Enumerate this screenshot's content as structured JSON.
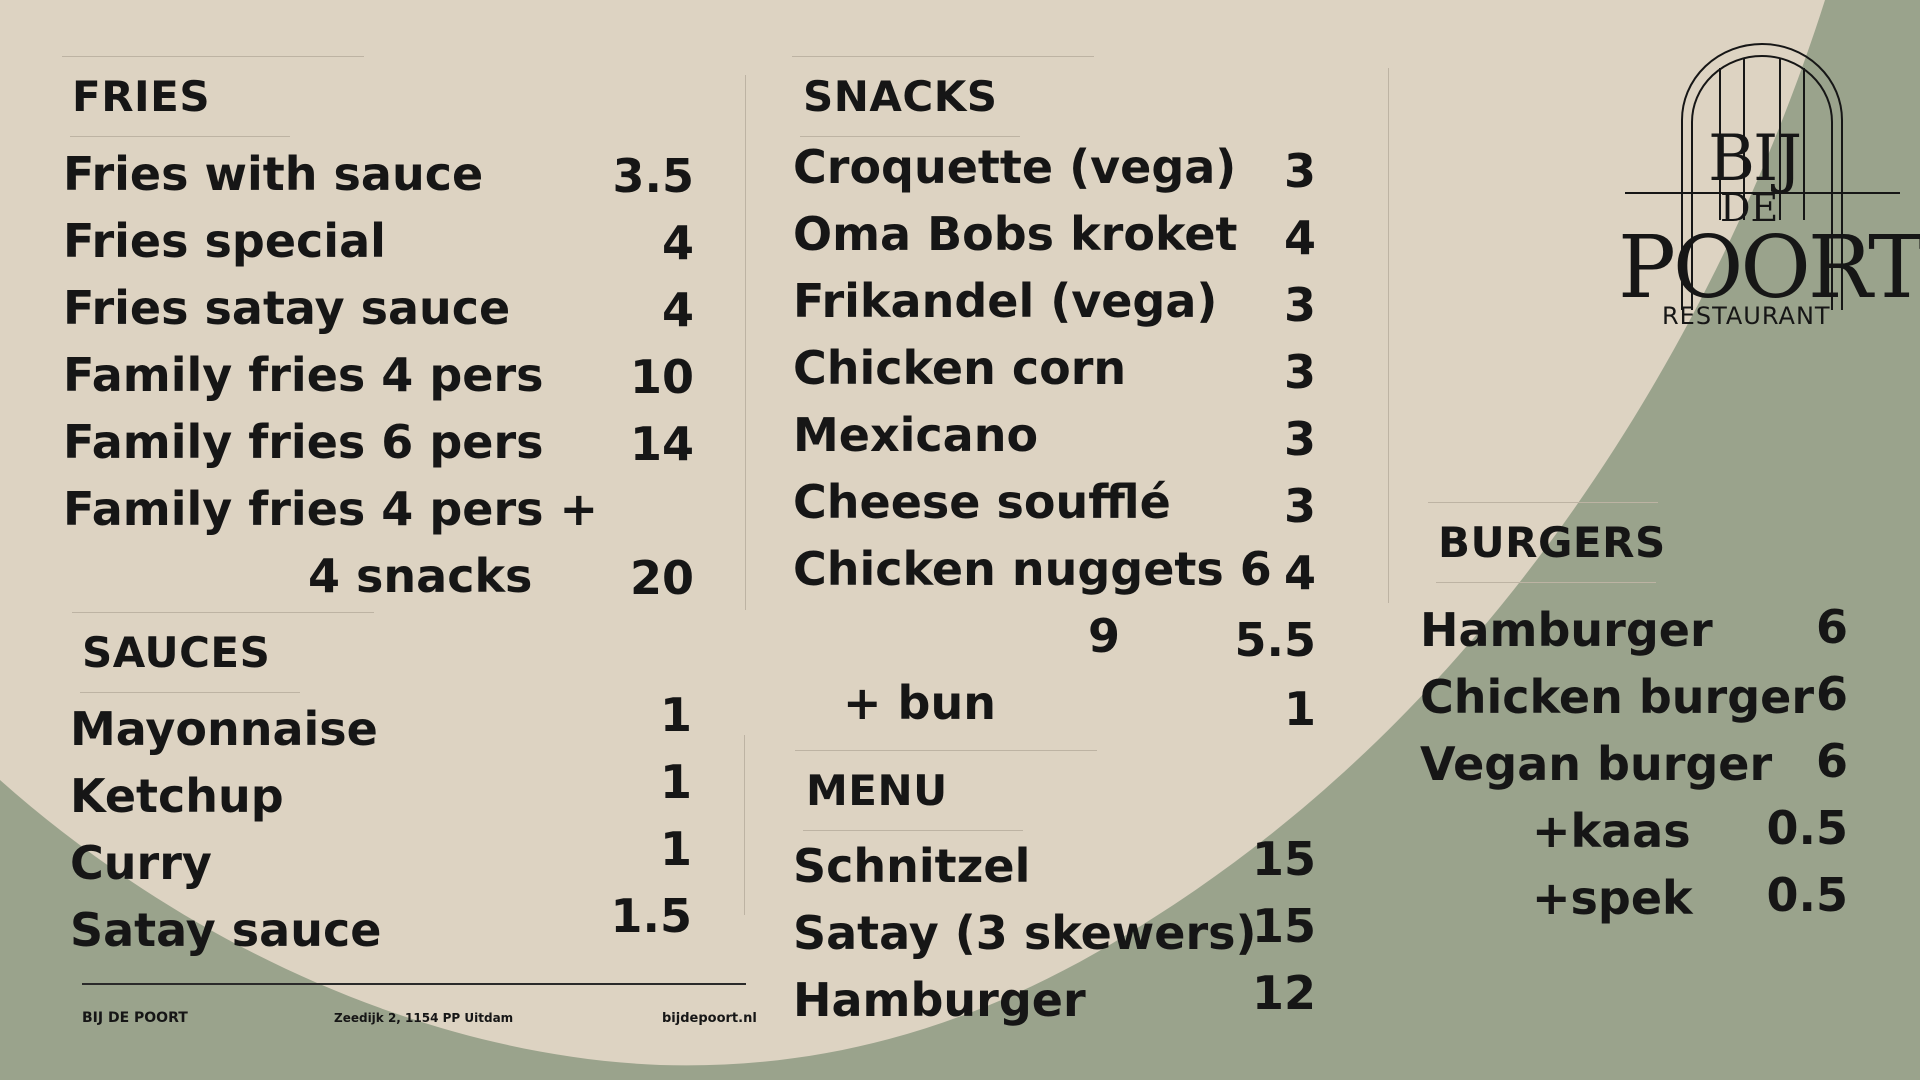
{
  "colors": {
    "background": "#ddd3c2",
    "accent_green": "#9aa38c",
    "text": "#161616"
  },
  "fries": {
    "heading": "FRIES",
    "items": [
      {
        "name": "Fries with sauce",
        "price": "3.5"
      },
      {
        "name": "Fries special",
        "price": "4"
      },
      {
        "name": "Fries satay sauce",
        "price": "4"
      },
      {
        "name": "Family fries 4 pers",
        "price": "10"
      },
      {
        "name": "Family fries 6 pers",
        "price": "14"
      },
      {
        "name": "Family fries 4 pers +",
        "name_line2": "4 snacks",
        "price": "20"
      }
    ]
  },
  "sauces": {
    "heading": "SAUCES",
    "items": [
      {
        "name": "Mayonnaise",
        "price": "1"
      },
      {
        "name": "Ketchup",
        "price": "1"
      },
      {
        "name": "Curry",
        "price": "1"
      },
      {
        "name": "Satay sauce",
        "price": "1.5"
      }
    ]
  },
  "snacks": {
    "heading": "SNACKS",
    "items": [
      {
        "name": "Croquette (vega)",
        "price": "3"
      },
      {
        "name": "Oma Bobs kroket",
        "price": "4"
      },
      {
        "name": "Frikandel (vega)",
        "price": "3"
      },
      {
        "name": "Chicken corn",
        "price": "3"
      },
      {
        "name": "Mexicano",
        "price": "3"
      },
      {
        "name": "Cheese soufflé",
        "price": "3"
      },
      {
        "name": "Chicken nuggets 6",
        "price": "4"
      },
      {
        "name": "9",
        "price": "5.5"
      },
      {
        "name": "+ bun",
        "price": "1"
      }
    ]
  },
  "menu": {
    "heading": "MENU",
    "items": [
      {
        "name": "Schnitzel",
        "price": "15"
      },
      {
        "name": "Satay (3 skewers)",
        "price": "15"
      },
      {
        "name": "Hamburger",
        "price": "12"
      }
    ]
  },
  "burgers": {
    "heading": "BURGERS",
    "items": [
      {
        "name": "Hamburger",
        "price": "6"
      },
      {
        "name": "Chicken burger",
        "price": "6"
      },
      {
        "name": "Vegan burger",
        "price": "6"
      },
      {
        "name": "+kaas",
        "price": "0.5"
      },
      {
        "name": "+spek",
        "price": "0.5"
      }
    ]
  },
  "logo": {
    "line1": "BIJ",
    "line2": "DE",
    "line3": "POORT",
    "line4": "RESTAURANT",
    "icon": "gate-arch-icon"
  },
  "footer": {
    "name": "BIJ DE POORT",
    "address": "Zeedijk 2, 1154 PP Uitdam",
    "website": "bijdepoort.nl"
  }
}
